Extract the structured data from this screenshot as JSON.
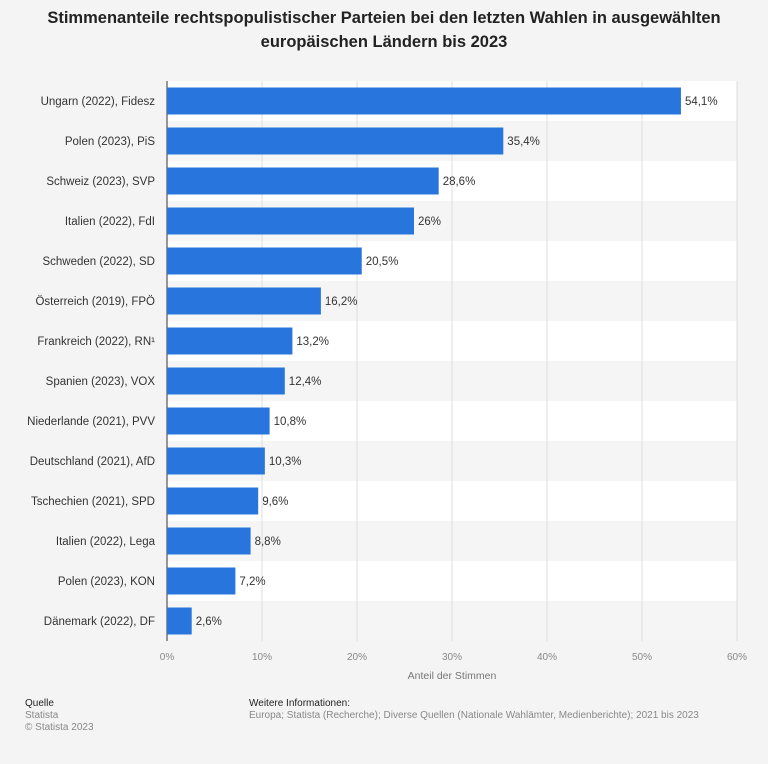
{
  "chart_data": {
    "type": "bar",
    "orientation": "horizontal",
    "title": "Stimmenanteile rechtspopulistischer Parteien bei den letzten Wahlen in ausgewählten europäischen Ländern bis 2023",
    "xlabel": "Anteil der Stimmen",
    "ylabel": "",
    "xlim": [
      0,
      60
    ],
    "x_ticks": [
      "0%",
      "10%",
      "20%",
      "30%",
      "40%",
      "50%",
      "60%"
    ],
    "categories": [
      "Ungarn (2022), Fidesz",
      "Polen (2023), PiS",
      "Schweiz (2023), SVP",
      "Italien (2022), FdI",
      "Schweden (2022), SD",
      "Österreich (2019), FPÖ",
      "Frankreich (2022), RN¹",
      "Spanien (2023), VOX",
      "Niederlande (2021), PVV",
      "Deutschland (2021), AfD",
      "Tschechien (2021), SPD",
      "Italien (2022), Lega",
      "Polen (2023), KON",
      "Dänemark (2022), DF"
    ],
    "values": [
      54.1,
      35.4,
      28.6,
      26,
      20.5,
      16.2,
      13.2,
      12.4,
      10.8,
      10.3,
      9.6,
      8.8,
      7.2,
      2.6
    ],
    "labels": [
      "54,1%",
      "35,4%",
      "28,6%",
      "26%",
      "20,5%",
      "16,2%",
      "13,2%",
      "12,4%",
      "10,8%",
      "10,3%",
      "9,6%",
      "8,8%",
      "7,2%",
      "2,6%"
    ],
    "bar_color": "#2876dd",
    "grid": true
  },
  "footer": {
    "source_heading": "Quelle",
    "source": "Statista",
    "copyright": "© Statista 2023",
    "info_heading": "Weitere Informationen:",
    "info": "Europa; Statista (Recherche); Diverse Quellen (Nationale Wahlämter, Medienberichte); 2021 bis 2023"
  }
}
